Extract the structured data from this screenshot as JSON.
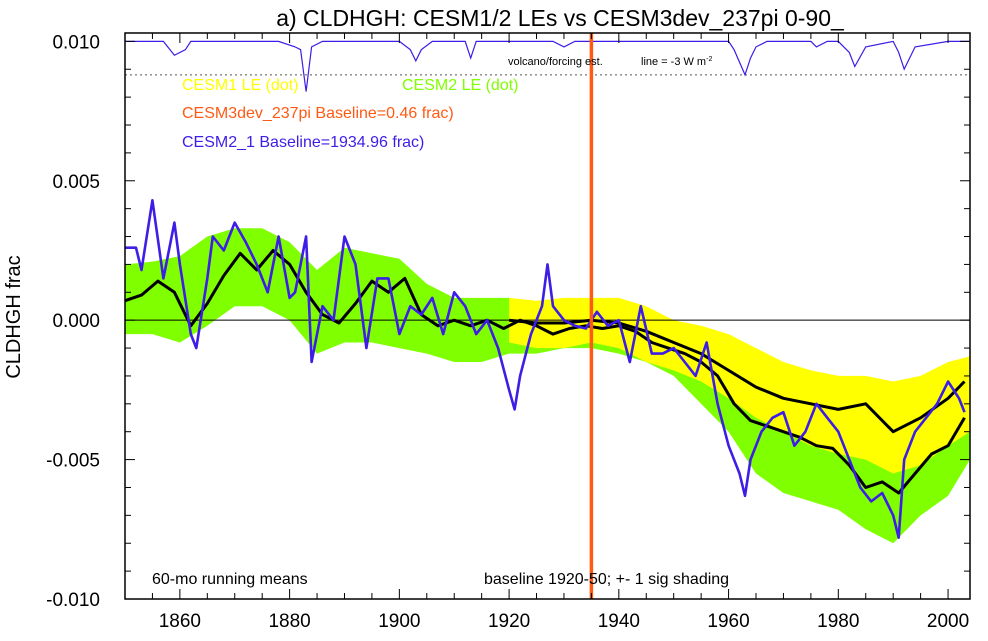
{
  "chart_data": {
    "type": "line",
    "title": "a) CLDHGH: CESM1/2 LEs vs CESM3dev_237pi 0-90_",
    "ylabel": "CLDHGH frac",
    "xlim": [
      1850,
      2004
    ],
    "ylim": [
      -0.01,
      0.0103
    ],
    "x_ticks": [
      1860,
      1880,
      1900,
      1920,
      1940,
      1960,
      1980,
      2000
    ],
    "y_ticks": [
      {
        "value": 0.01,
        "label": "0.010"
      },
      {
        "value": 0.005,
        "label": "0.005"
      },
      {
        "value": 0.0,
        "label": "0.000"
      },
      {
        "value": -0.005,
        "label": "-0.005"
      },
      {
        "value": -0.01,
        "label": "-0.010"
      }
    ],
    "zero_line": 0.0,
    "volcano_reference_level": 0.0088,
    "vertical_marker_year": 1935,
    "legend": {
      "cesm1": "CESM1 LE (dot)",
      "cesm2": "CESM2 LE (dot)",
      "cesm3": "CESM3dev_237pi Baseline=0.46 frac)",
      "cesm2_1": "CESM2_1 Baseline=1934.96 frac)"
    },
    "annotations": {
      "volcano_label": "volcano/forcing est.",
      "volcano_line": "line = -3 W m",
      "volcano_superscript": "-2",
      "running_mean": "60-mo running means",
      "baseline_note": "baseline 1920-50; +- 1 sig shading"
    },
    "colors": {
      "cesm1": "#ffff00",
      "cesm2": "#80ff00",
      "cesm3": "#ff5a14",
      "cesm2_1": "#3c1ee6",
      "ensemble_mean": "#000000"
    },
    "series": [
      {
        "name": "CESM2 LE (dot)",
        "kind": "band",
        "x": [
          1850,
          1855,
          1860,
          1865,
          1870,
          1875,
          1880,
          1885,
          1890,
          1895,
          1900,
          1905,
          1910,
          1915,
          1920,
          1925,
          1930,
          1935,
          1940,
          1945,
          1950,
          1955,
          1960,
          1965,
          1970,
          1975,
          1980,
          1985,
          1990,
          1995,
          2000,
          2004
        ],
        "upper": [
          0.002,
          0.0021,
          0.0023,
          0.003,
          0.0033,
          0.0033,
          0.0028,
          0.0018,
          0.0026,
          0.0024,
          0.0022,
          0.0013,
          0.0008,
          0.0008,
          0.0008,
          0.0005,
          0.0004,
          0.0003,
          0.0004,
          0.0,
          -0.0005,
          -0.001,
          -0.0015,
          -0.0022,
          -0.003,
          -0.0035,
          -0.0038,
          -0.0042,
          -0.0045,
          -0.004,
          -0.003,
          -0.0025
        ],
        "lower": [
          -0.0005,
          -0.0005,
          -0.0008,
          -0.0002,
          0.0005,
          0.0005,
          0.0,
          -0.0012,
          -0.0008,
          -0.0008,
          -0.001,
          -0.0012,
          -0.0015,
          -0.0015,
          -0.0012,
          -0.0012,
          -0.001,
          -0.001,
          -0.0012,
          -0.0015,
          -0.002,
          -0.003,
          -0.004,
          -0.0055,
          -0.0062,
          -0.0065,
          -0.0068,
          -0.0075,
          -0.008,
          -0.007,
          -0.0063,
          -0.005
        ]
      },
      {
        "name": "CESM1 LE (dot)",
        "kind": "band",
        "x": [
          1920,
          1925,
          1930,
          1935,
          1940,
          1945,
          1950,
          1955,
          1960,
          1965,
          1970,
          1975,
          1980,
          1985,
          1990,
          1995,
          2000,
          2004
        ],
        "upper": [
          0.0008,
          0.0007,
          0.0008,
          0.0008,
          0.0008,
          0.0005,
          0.0,
          -0.0002,
          -0.0005,
          -0.001,
          -0.0015,
          -0.0018,
          -0.002,
          -0.002,
          -0.0022,
          -0.002,
          -0.0015,
          -0.0013
        ],
        "lower": [
          -0.0008,
          -0.001,
          -0.001,
          -0.0008,
          -0.001,
          -0.0015,
          -0.0018,
          -0.0022,
          -0.0028,
          -0.0035,
          -0.004,
          -0.0045,
          -0.0048,
          -0.005,
          -0.0055,
          -0.0052,
          -0.0045,
          -0.004
        ]
      },
      {
        "name": "CESM2 LE mean",
        "kind": "line",
        "x": [
          1850,
          1853,
          1856,
          1859,
          1862,
          1865,
          1868,
          1871,
          1874,
          1877,
          1880,
          1883,
          1886,
          1889,
          1892,
          1895,
          1898,
          1901,
          1904,
          1907,
          1910,
          1913,
          1916,
          1919,
          1922,
          1925,
          1928,
          1931,
          1934,
          1937,
          1940,
          1943,
          1946,
          1949,
          1952,
          1955,
          1958,
          1961,
          1964,
          1967,
          1970,
          1973,
          1976,
          1979,
          1982,
          1985,
          1988,
          1991,
          1994,
          1997,
          2000,
          2003
        ],
        "y": [
          0.0007,
          0.0009,
          0.0014,
          0.001,
          -0.0002,
          0.0006,
          0.0016,
          0.0024,
          0.0018,
          0.0025,
          0.002,
          0.001,
          0.0002,
          -0.0001,
          0.0006,
          0.0014,
          0.001,
          0.0015,
          0.0002,
          -0.0002,
          0.0,
          -0.0002,
          0.0,
          -0.0003,
          0.0,
          -0.0002,
          -0.0005,
          -0.0003,
          -0.0002,
          -0.0003,
          -0.0002,
          -0.0004,
          -0.0008,
          -0.001,
          -0.0012,
          -0.0015,
          -0.002,
          -0.003,
          -0.0036,
          -0.0038,
          -0.004,
          -0.0042,
          -0.0045,
          -0.0046,
          -0.0052,
          -0.006,
          -0.0058,
          -0.0062,
          -0.0055,
          -0.0048,
          -0.0045,
          -0.0035
        ]
      },
      {
        "name": "CESM1 LE mean",
        "kind": "line",
        "x": [
          1920,
          1925,
          1930,
          1935,
          1940,
          1945,
          1950,
          1955,
          1960,
          1965,
          1970,
          1975,
          1980,
          1985,
          1990,
          1995,
          2000,
          2003
        ],
        "y": [
          0.0,
          -0.0001,
          -0.0001,
          0.0,
          -0.0001,
          -0.0004,
          -0.0008,
          -0.0012,
          -0.0018,
          -0.0024,
          -0.0028,
          -0.003,
          -0.0032,
          -0.003,
          -0.004,
          -0.0035,
          -0.0028,
          -0.0022
        ]
      },
      {
        "name": "CESM2_1 Baseline=1934.96 frac)",
        "kind": "line",
        "x": [
          1850,
          1852,
          1853,
          1855,
          1857,
          1859,
          1860,
          1862,
          1863,
          1865,
          1866,
          1868,
          1870,
          1872,
          1874,
          1876,
          1878,
          1880,
          1881,
          1883,
          1884,
          1886,
          1888,
          1890,
          1892,
          1894,
          1896,
          1898,
          1900,
          1902,
          1904,
          1906,
          1908,
          1910,
          1912,
          1914,
          1916,
          1918,
          1920,
          1921,
          1922,
          1924,
          1926,
          1927,
          1928,
          1930,
          1932,
          1934,
          1936,
          1938,
          1940,
          1942,
          1944,
          1946,
          1948,
          1950,
          1952,
          1954,
          1956,
          1958,
          1960,
          1962,
          1963,
          1964,
          1966,
          1968,
          1970,
          1972,
          1974,
          1976,
          1978,
          1980,
          1982,
          1984,
          1986,
          1988,
          1990,
          1991,
          1992,
          1994,
          1996,
          1998,
          2000,
          2002,
          2003
        ],
        "y": [
          0.0026,
          0.0026,
          0.0018,
          0.0043,
          0.0015,
          0.0035,
          0.002,
          -0.0005,
          -0.001,
          0.0015,
          0.003,
          0.0025,
          0.0035,
          0.0028,
          0.002,
          0.001,
          0.003,
          0.0008,
          0.001,
          0.003,
          -0.0015,
          0.0005,
          0.0,
          0.003,
          0.002,
          -0.001,
          0.0015,
          0.0015,
          -0.0005,
          0.0005,
          0.0002,
          0.0008,
          -0.0005,
          0.001,
          0.0005,
          -0.0005,
          0.0,
          -0.001,
          -0.0025,
          -0.0032,
          -0.002,
          -0.0005,
          0.0005,
          0.002,
          0.0005,
          0.0,
          -0.0002,
          -0.0003,
          0.0003,
          -0.0002,
          0.0,
          -0.0015,
          0.0005,
          -0.0012,
          -0.0012,
          -0.001,
          -0.0015,
          -0.002,
          -0.0008,
          -0.003,
          -0.0045,
          -0.0055,
          -0.0063,
          -0.005,
          -0.004,
          -0.0035,
          -0.0033,
          -0.0045,
          -0.004,
          -0.003,
          -0.0035,
          -0.004,
          -0.005,
          -0.006,
          -0.0065,
          -0.0062,
          -0.007,
          -0.0078,
          -0.005,
          -0.004,
          -0.0035,
          -0.003,
          -0.0022,
          -0.0028,
          -0.0033
        ]
      },
      {
        "name": "volcanic forcing",
        "kind": "volcano",
        "x": [
          1850,
          1857,
          1859,
          1861,
          1862,
          1864,
          1870,
          1878,
          1881,
          1882,
          1883,
          1884,
          1886,
          1890,
          1900,
          1902,
          1903,
          1904,
          1906,
          1912,
          1913,
          1914,
          1916,
          1920,
          1928,
          1930,
          1932,
          1940,
          1950,
          1960,
          1961,
          1963,
          1964,
          1965,
          1967,
          1970,
          1975,
          1976,
          1978,
          1980,
          1982,
          1983,
          1985,
          1990,
          1991,
          1992,
          1994,
          2000,
          2004
        ],
        "y": [
          0.01,
          0.01,
          0.0095,
          0.0097,
          0.01,
          0.01,
          0.01,
          0.01,
          0.0098,
          0.0097,
          0.0082,
          0.0098,
          0.01,
          0.01,
          0.01,
          0.0097,
          0.0093,
          0.0097,
          0.01,
          0.01,
          0.0094,
          0.01,
          0.01,
          0.01,
          0.01,
          0.0098,
          0.01,
          0.01,
          0.01,
          0.01,
          0.0097,
          0.0088,
          0.0094,
          0.0098,
          0.01,
          0.01,
          0.01,
          0.0098,
          0.01,
          0.01,
          0.0096,
          0.0091,
          0.0098,
          0.01,
          0.0096,
          0.009,
          0.0098,
          0.01,
          0.01
        ]
      }
    ]
  }
}
